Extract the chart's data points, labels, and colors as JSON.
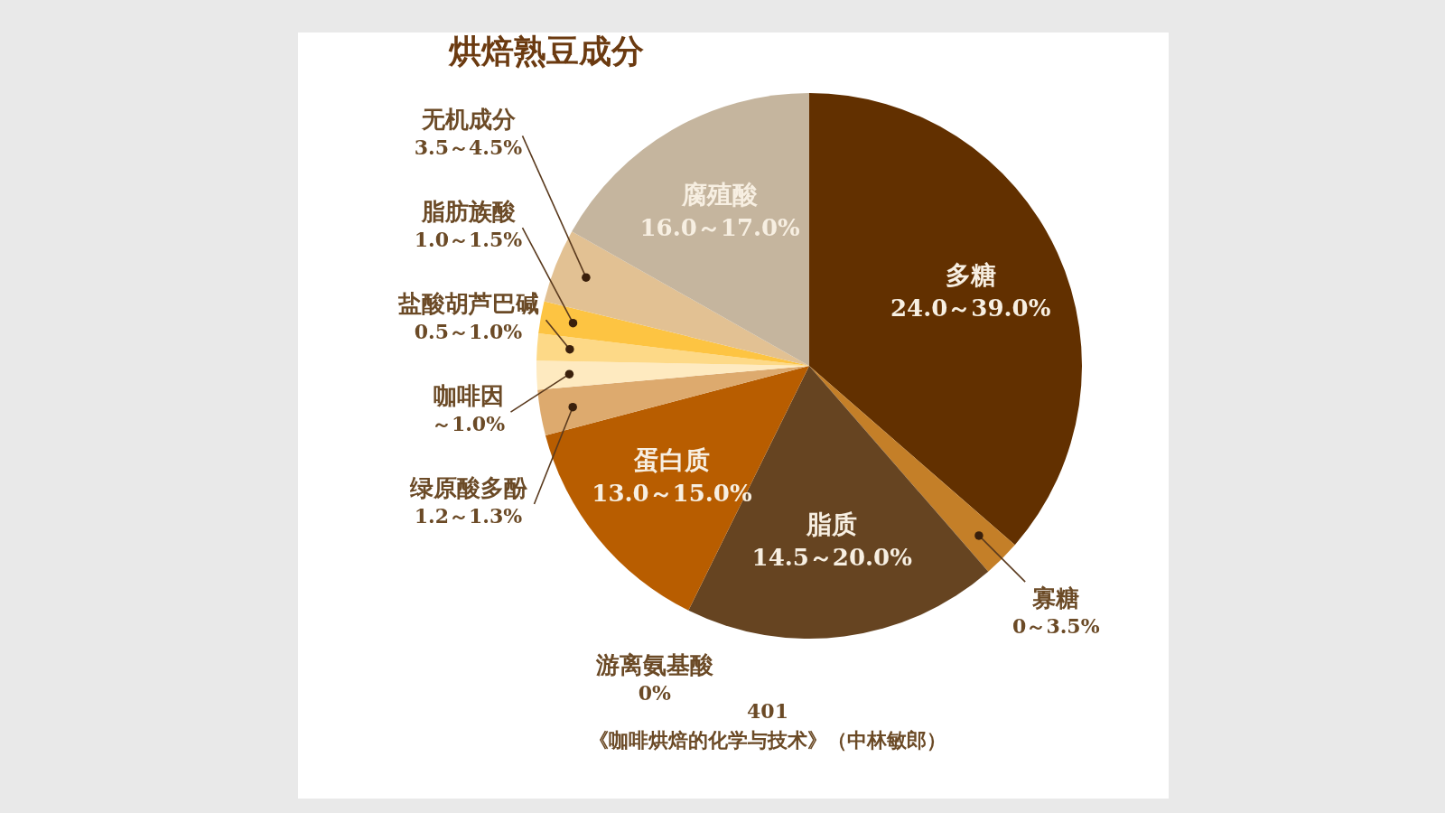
{
  "chart_data": {
    "type": "pie",
    "title": "烘焙熟豆成分",
    "categories": [
      "多糖",
      "寡糖",
      "脂质",
      "游离氨基酸",
      "蛋白质",
      "绿原酸多酚",
      "咖啡因",
      "盐酸胡芦巴碱",
      "脂肪族酸",
      "无机成分",
      "腐殖酸"
    ],
    "values": [
      36.4,
      2.2,
      18.7,
      0,
      13.6,
      2.7,
      1.7,
      1.6,
      1.9,
      4.4,
      16.8
    ],
    "colors": [
      "#623000",
      "#c47f28",
      "#664421",
      null,
      "#b85d00",
      "#ddaa6e",
      "#feeac0",
      "#fdd987",
      "#fdc442",
      "#e2c193",
      "#c5b59e"
    ],
    "annotations": [
      {
        "text": "24.0～39.0%",
        "x": "多糖"
      },
      {
        "text": "0～3.5%",
        "x": "寡糖"
      },
      {
        "text": "14.5～20.0%",
        "x": "脂质"
      },
      {
        "text": "0%",
        "x": "游离氨基酸"
      },
      {
        "text": "13.0～15.0%",
        "x": "蛋白质"
      },
      {
        "text": "1.2～1.3%",
        "x": "绿原酸多酚"
      },
      {
        "text": "～1.0%",
        "x": "咖啡因"
      },
      {
        "text": "0.5～1.0%",
        "x": "盐酸胡芦巴碱"
      },
      {
        "text": "1.0～1.5%",
        "x": "脂肪族酸"
      },
      {
        "text": "3.5～4.5%",
        "x": "无机成分"
      },
      {
        "text": "16.0～17.0%",
        "x": "腐殖酸"
      },
      "401",
      "《咖啡烘焙的化学与技术》（中林敏郎）"
    ],
    "legend": false
  }
}
